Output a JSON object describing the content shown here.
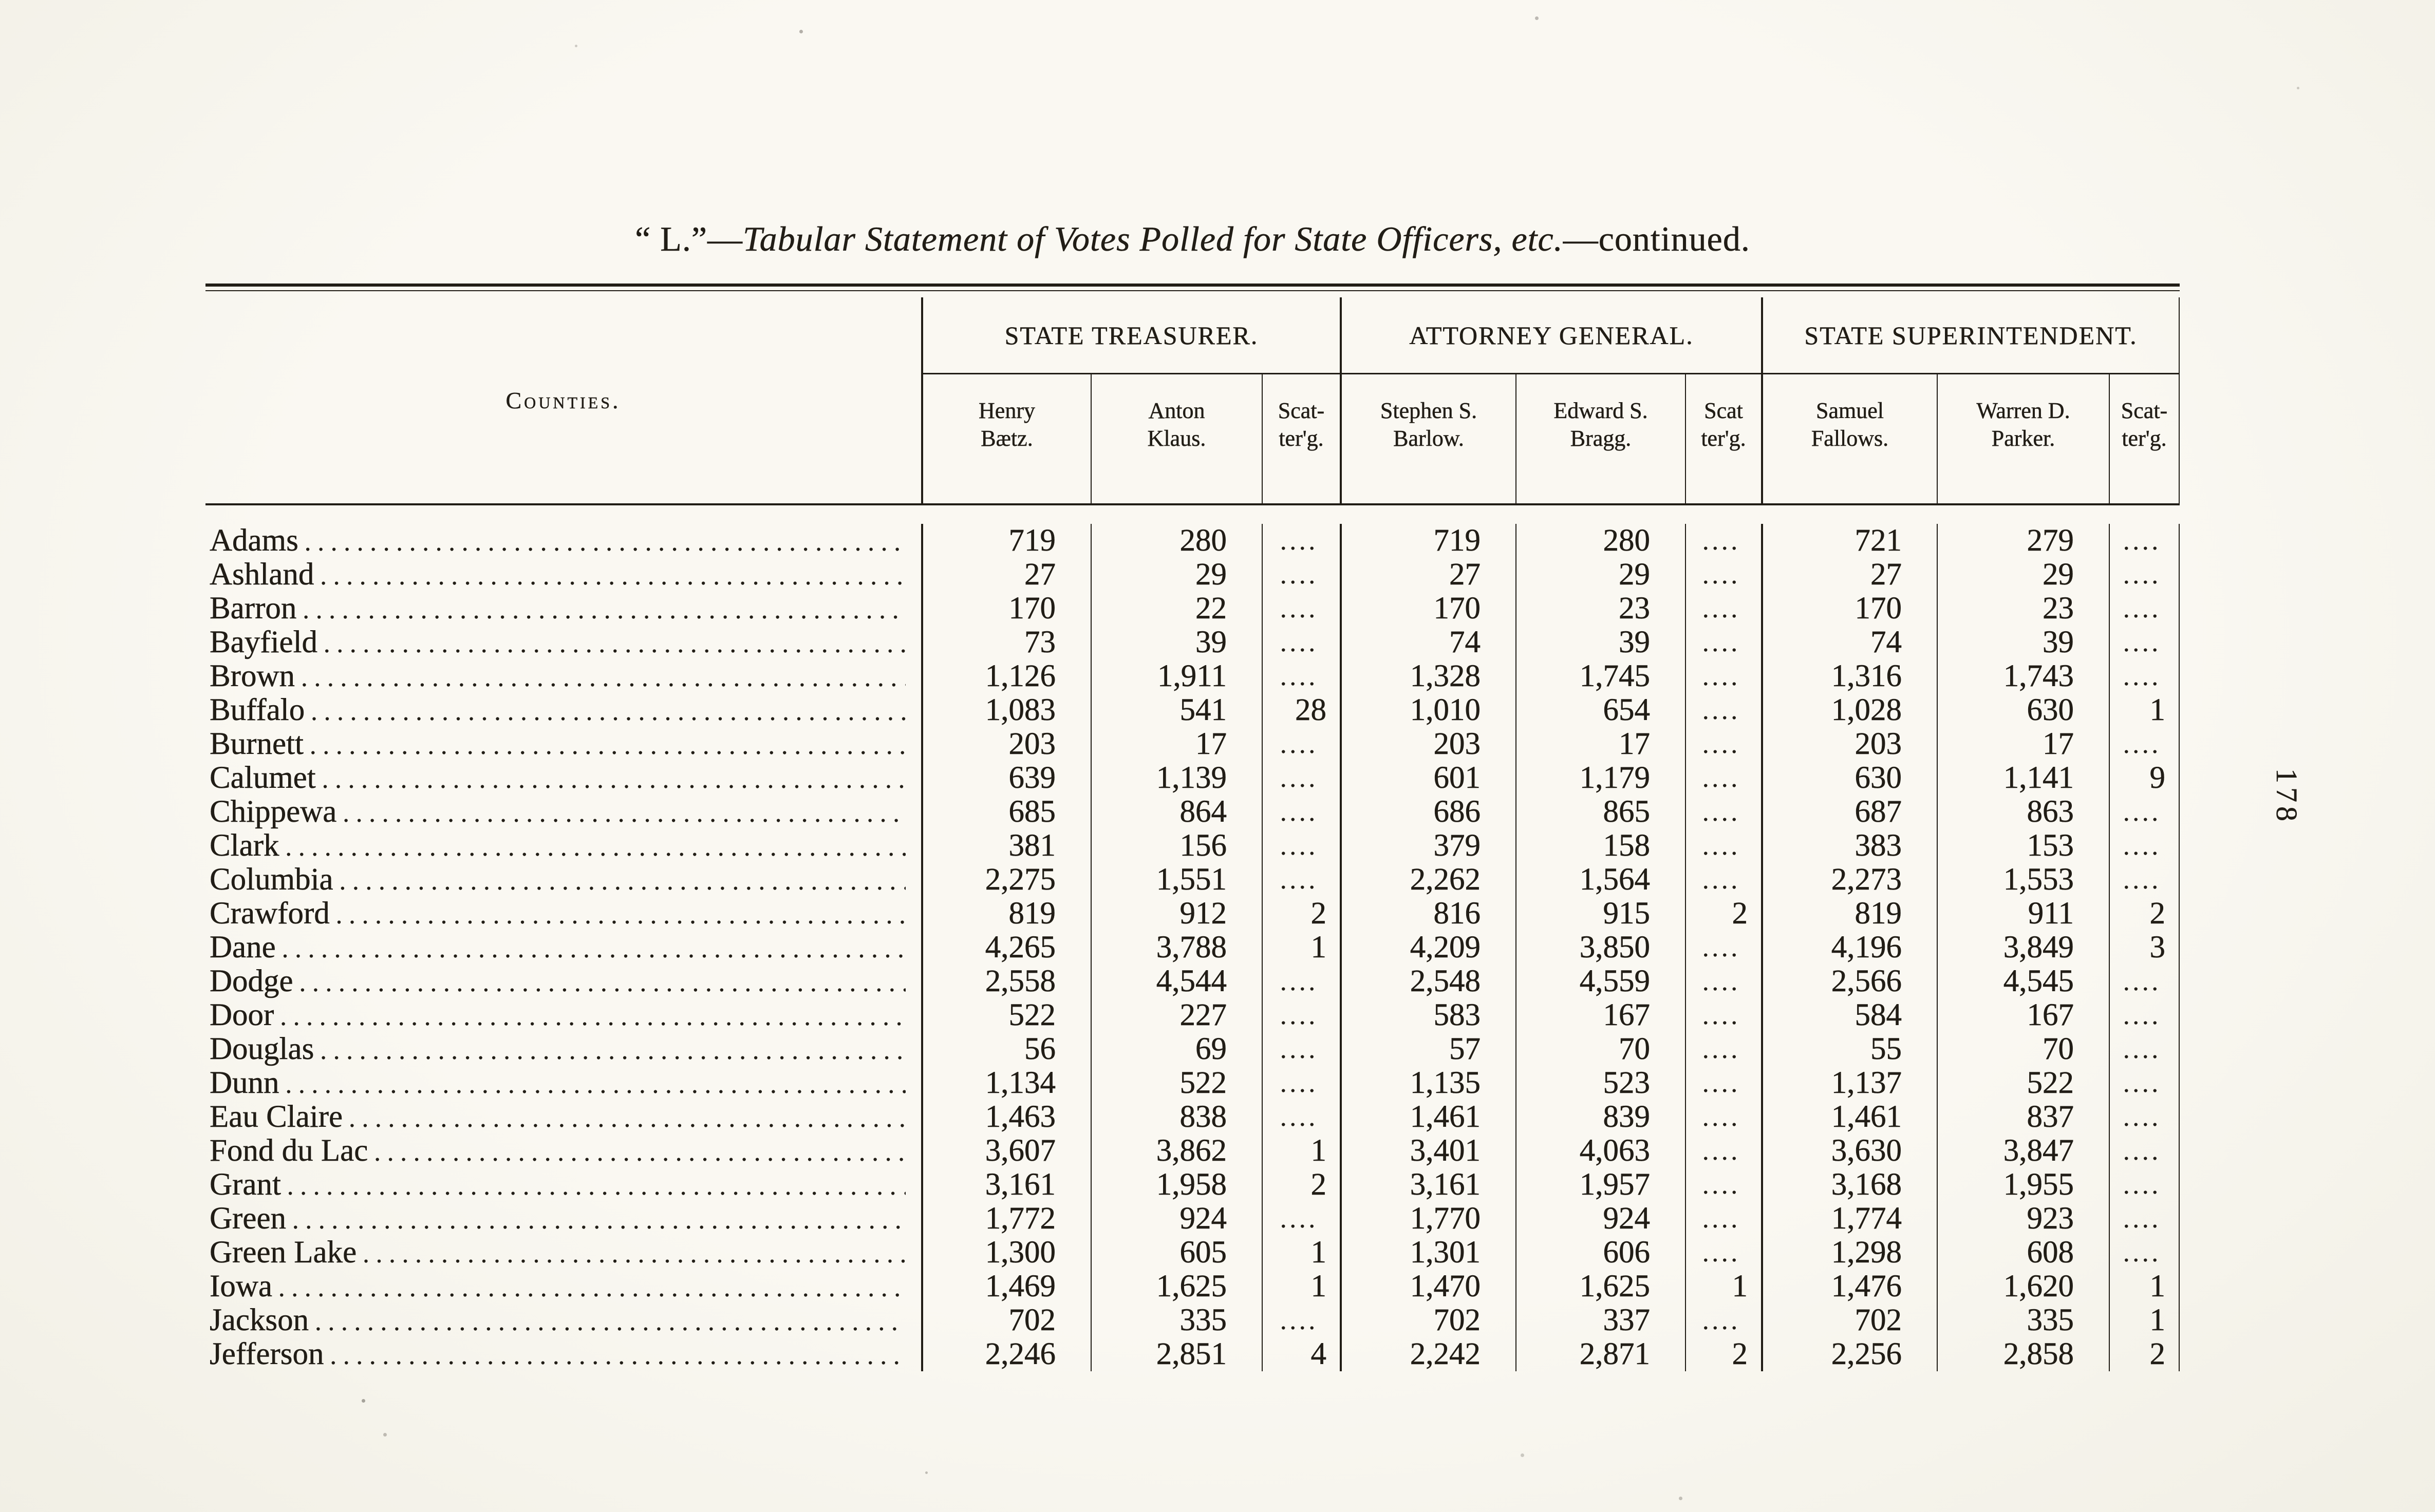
{
  "theme": {
    "paper": "#f8f6f0",
    "ink": "#211d16"
  },
  "page": {
    "title": {
      "prefix": "“ L.”",
      "separator": "—",
      "main": "Tabular Statement of Votes Polled for State Officers, etc.",
      "suffix": "—continued."
    },
    "side_page_number": "178"
  },
  "table": {
    "counties_label": "Counties.",
    "groups": [
      {
        "title": "STATE TREASURER.",
        "columns": [
          "Henry\nBætz.",
          "Anton\nKlaus.",
          "Scat-\nter'g."
        ]
      },
      {
        "title": "ATTORNEY GENERAL.",
        "columns": [
          "Stephen S.\nBarlow.",
          "Edward S.\nBragg.",
          "Scat\nter'g."
        ]
      },
      {
        "title": "STATE SUPERINTENDENT.",
        "columns": [
          "Samuel\nFallows.",
          "Warren D.\nParker.",
          "Scat-\nter'g."
        ]
      }
    ],
    "rows": [
      {
        "county": "Adams",
        "values": [
          "719",
          "280",
          "....",
          "719",
          "280",
          "....",
          "721",
          "279",
          "...."
        ]
      },
      {
        "county": "Ashland",
        "values": [
          "27",
          "29",
          "....",
          "27",
          "29",
          "....",
          "27",
          "29",
          "...."
        ]
      },
      {
        "county": "Barron",
        "values": [
          "170",
          "22",
          "....",
          "170",
          "23",
          "....",
          "170",
          "23",
          "...."
        ]
      },
      {
        "county": "Bayfield",
        "values": [
          "73",
          "39",
          "....",
          "74",
          "39",
          "....",
          "74",
          "39",
          "...."
        ]
      },
      {
        "county": "Brown",
        "values": [
          "1,126",
          "1,911",
          "....",
          "1,328",
          "1,745",
          "....",
          "1,316",
          "1,743",
          "...."
        ]
      },
      {
        "county": "Buffalo",
        "values": [
          "1,083",
          "541",
          "28",
          "1,010",
          "654",
          "....",
          "1,028",
          "630",
          "1"
        ]
      },
      {
        "county": "Burnett",
        "values": [
          "203",
          "17",
          "....",
          "203",
          "17",
          "....",
          "203",
          "17",
          "...."
        ]
      },
      {
        "county": "Calumet",
        "values": [
          "639",
          "1,139",
          "....",
          "601",
          "1,179",
          "....",
          "630",
          "1,141",
          "9"
        ]
      },
      {
        "county": "Chippewa",
        "values": [
          "685",
          "864",
          "....",
          "686",
          "865",
          "....",
          "687",
          "863",
          "...."
        ]
      },
      {
        "county": "Clark",
        "values": [
          "381",
          "156",
          "....",
          "379",
          "158",
          "....",
          "383",
          "153",
          "...."
        ]
      },
      {
        "county": "Columbia",
        "values": [
          "2,275",
          "1,551",
          "....",
          "2,262",
          "1,564",
          "....",
          "2,273",
          "1,553",
          "...."
        ]
      },
      {
        "county": "Crawford",
        "values": [
          "819",
          "912",
          "2",
          "816",
          "915",
          "2",
          "819",
          "911",
          "2"
        ]
      },
      {
        "county": "Dane",
        "values": [
          "4,265",
          "3,788",
          "1",
          "4,209",
          "3,850",
          "....",
          "4,196",
          "3,849",
          "3"
        ]
      },
      {
        "county": "Dodge",
        "values": [
          "2,558",
          "4,544",
          "....",
          "2,548",
          "4,559",
          "....",
          "2,566",
          "4,545",
          "...."
        ]
      },
      {
        "county": "Door",
        "values": [
          "522",
          "227",
          "....",
          "583",
          "167",
          "....",
          "584",
          "167",
          "...."
        ]
      },
      {
        "county": "Douglas",
        "values": [
          "56",
          "69",
          "....",
          "57",
          "70",
          "....",
          "55",
          "70",
          "...."
        ]
      },
      {
        "county": "Dunn",
        "values": [
          "1,134",
          "522",
          "....",
          "1,135",
          "523",
          "....",
          "1,137",
          "522",
          "...."
        ]
      },
      {
        "county": "Eau Claire",
        "values": [
          "1,463",
          "838",
          "....",
          "1,461",
          "839",
          "....",
          "1,461",
          "837",
          "...."
        ]
      },
      {
        "county": "Fond du Lac",
        "values": [
          "3,607",
          "3,862",
          "1",
          "3,401",
          "4,063",
          "....",
          "3,630",
          "3,847",
          "...."
        ]
      },
      {
        "county": "Grant",
        "values": [
          "3,161",
          "1,958",
          "2",
          "3,161",
          "1,957",
          "....",
          "3,168",
          "1,955",
          "...."
        ]
      },
      {
        "county": "Green",
        "values": [
          "1,772",
          "924",
          "....",
          "1,770",
          "924",
          "....",
          "1,774",
          "923",
          "...."
        ]
      },
      {
        "county": "Green Lake",
        "values": [
          "1,300",
          "605",
          "1",
          "1,301",
          "606",
          "....",
          "1,298",
          "608",
          "...."
        ]
      },
      {
        "county": "Iowa",
        "values": [
          "1,469",
          "1,625",
          "1",
          "1,470",
          "1,625",
          "1",
          "1,476",
          "1,620",
          "1"
        ]
      },
      {
        "county": "Jackson",
        "values": [
          "702",
          "335",
          "....",
          "702",
          "337",
          "....",
          "702",
          "335",
          "1"
        ]
      },
      {
        "county": "Jefferson",
        "values": [
          "2,246",
          "2,851",
          "4",
          "2,242",
          "2,871",
          "2",
          "2,256",
          "2,858",
          "2"
        ]
      }
    ]
  }
}
